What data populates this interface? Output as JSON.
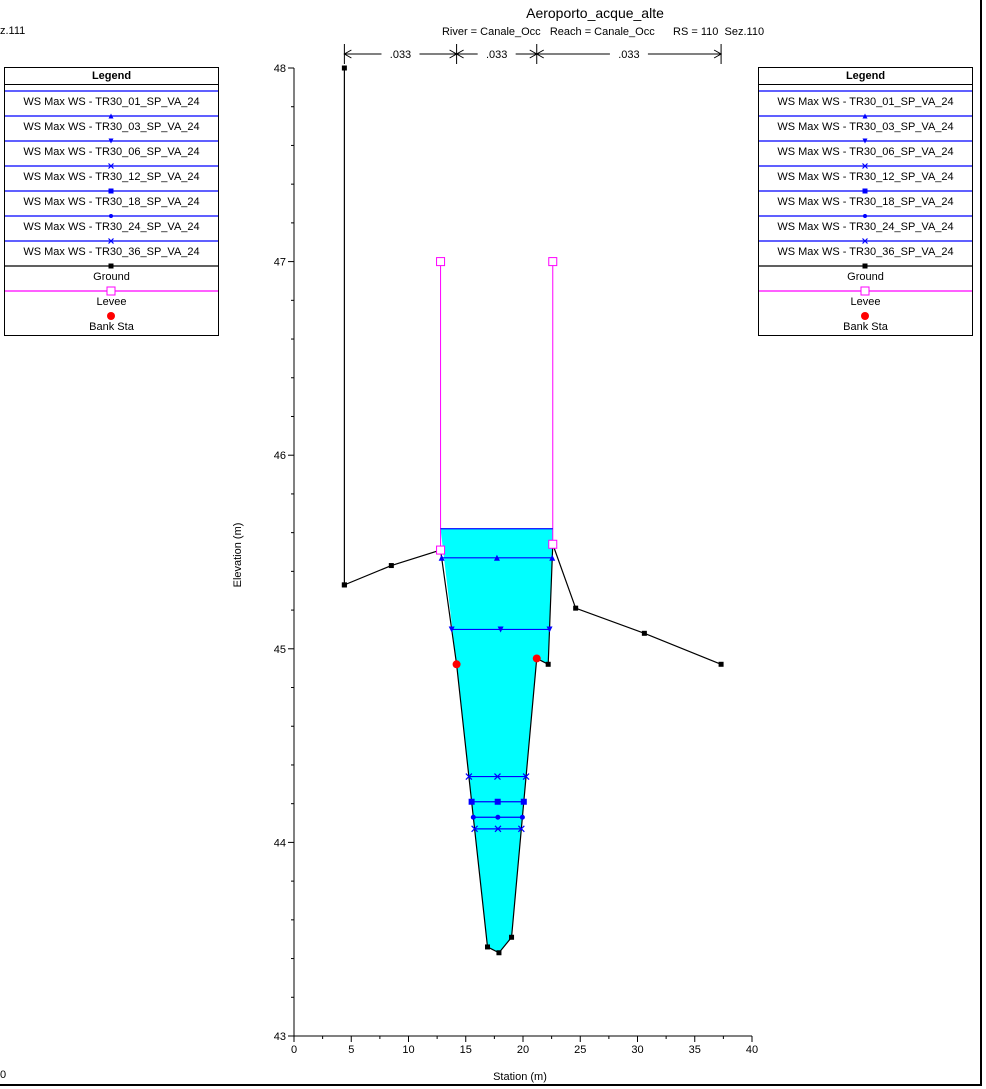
{
  "header": {
    "title": "Aeroporto_acque_alte",
    "subtitle": "River = Canale_Occ   Reach = Canale_Occ      RS = 110  Sez.110"
  },
  "left_panel": {
    "cut_title": "z.111",
    "cut_tick": "0"
  },
  "legend": {
    "title": "Legend",
    "items": [
      {
        "label": "WS Max WS - TR30_01_SP_VA_24",
        "color": "#0000ff",
        "marker": "none"
      },
      {
        "label": "WS Max WS - TR30_03_SP_VA_24",
        "color": "#0000ff",
        "marker": "triangle-up"
      },
      {
        "label": "WS Max WS - TR30_06_SP_VA_24",
        "color": "#0000ff",
        "marker": "triangle-down"
      },
      {
        "label": "WS Max WS - TR30_12_SP_VA_24",
        "color": "#0000ff",
        "marker": "x"
      },
      {
        "label": "WS Max WS - TR30_18_SP_VA_24",
        "color": "#0000ff",
        "marker": "square"
      },
      {
        "label": "WS Max WS - TR30_24_SP_VA_24",
        "color": "#0000ff",
        "marker": "circle"
      },
      {
        "label": "WS Max WS - TR30_36_SP_VA_24",
        "color": "#0000ff",
        "marker": "x"
      },
      {
        "label": "Ground",
        "color": "#000000",
        "marker": "square"
      },
      {
        "label": "Levee",
        "color": "#ff00ff",
        "marker": "open-square"
      },
      {
        "label": "Bank Sta",
        "color": "#ff0000",
        "marker": "dot"
      }
    ]
  },
  "chart_data": {
    "type": "line",
    "xlabel": "Station (m)",
    "ylabel": "Elevation (m)",
    "xlim": [
      0,
      40
    ],
    "ylim": [
      43,
      48
    ],
    "xticks": [
      0,
      5,
      10,
      15,
      20,
      25,
      30,
      35,
      40
    ],
    "yticks": [
      43,
      44,
      45,
      46,
      47,
      48
    ],
    "grid": false,
    "fill_color": "#00ffff",
    "manning": [
      {
        "label": ".033",
        "x0": 4.4,
        "x1": 14.2
      },
      {
        "label": ".033",
        "x0": 14.2,
        "x1": 21.2
      },
      {
        "label": ".033",
        "x0": 21.2,
        "x1": 37.3
      }
    ],
    "ground": {
      "color": "#000000",
      "x": [
        4.4,
        4.4,
        8.5,
        12.8,
        14.2,
        16.9,
        17.9,
        19.0,
        21.2,
        22.2,
        22.6,
        24.6,
        30.6,
        37.3
      ],
      "y": [
        48.0,
        45.33,
        45.43,
        45.51,
        44.92,
        43.46,
        43.43,
        43.51,
        44.95,
        44.92,
        45.54,
        45.21,
        45.08,
        44.92
      ]
    },
    "ground_markers_x": [
      4.4,
      4.4,
      8.5,
      12.8,
      16.9,
      17.9,
      19.0,
      22.2,
      22.6,
      24.6,
      30.6,
      37.3
    ],
    "levees": [
      {
        "x": 12.8,
        "top": 47.0,
        "bottom": 45.51
      },
      {
        "x": 22.6,
        "top": 47.0,
        "bottom": 45.54
      }
    ],
    "bank_stations": [
      {
        "x": 14.2,
        "y": 44.92
      },
      {
        "x": 21.2,
        "y": 44.95
      }
    ],
    "series": [
      {
        "name": "WS Max WS - TR30_01_SP_VA_24",
        "y": 45.62,
        "marker": "none"
      },
      {
        "name": "WS Max WS - TR30_03_SP_VA_24",
        "y": 45.47,
        "marker": "triangle-up"
      },
      {
        "name": "WS Max WS - TR30_06_SP_VA_24",
        "y": 45.1,
        "marker": "triangle-down"
      },
      {
        "name": "WS Max WS - TR30_12_SP_VA_24",
        "y": 44.34,
        "marker": "x"
      },
      {
        "name": "WS Max WS - TR30_18_SP_VA_24",
        "y": 44.21,
        "marker": "square"
      },
      {
        "name": "WS Max WS - TR30_24_SP_VA_24",
        "y": 44.13,
        "marker": "circle"
      },
      {
        "name": "WS Max WS - TR30_36_SP_VA_24",
        "y": 44.07,
        "marker": "x"
      }
    ]
  }
}
